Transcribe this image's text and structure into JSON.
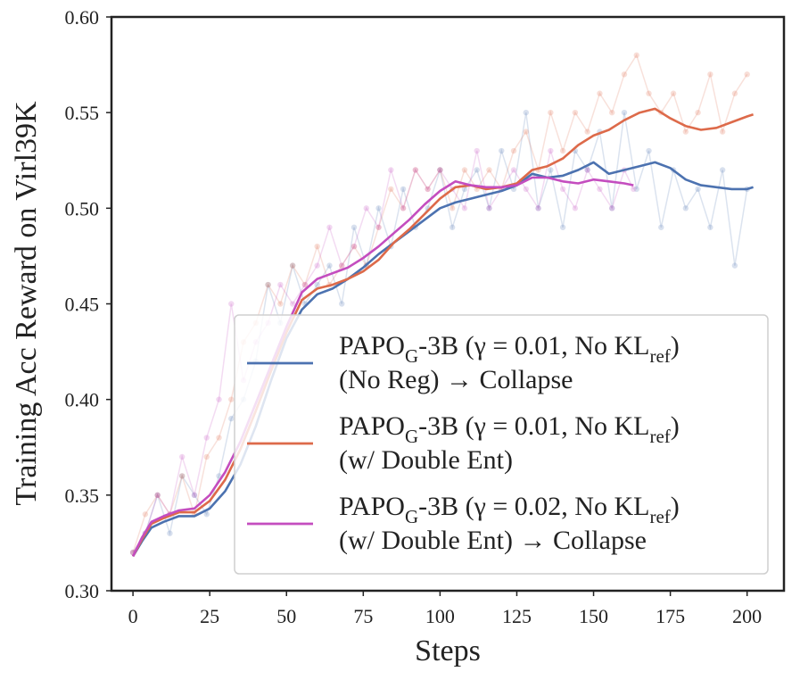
{
  "chart_data": {
    "type": "line",
    "title": "",
    "xlabel": "Steps",
    "ylabel": "Training Acc Reward on Virl39K",
    "xlim": [
      -7,
      212
    ],
    "ylim": [
      0.3,
      0.6
    ],
    "xticks": [
      0,
      25,
      50,
      75,
      100,
      125,
      150,
      175,
      200
    ],
    "yticks": [
      0.3,
      0.35,
      0.4,
      0.45,
      0.5,
      0.55,
      0.6
    ],
    "xtick_labels": [
      "0",
      "25",
      "50",
      "75",
      "100",
      "125",
      "150",
      "175",
      "200"
    ],
    "ytick_labels": [
      "0.30",
      "0.35",
      "0.40",
      "0.45",
      "0.50",
      "0.55",
      "0.60"
    ],
    "grid": false,
    "legend_position": "lower-right",
    "series": [
      {
        "name": "PAPO_G-3B (γ = 0.01, No KL_ref) (No Reg) → Collapse",
        "legend": {
          "prefix": "PAPO",
          "sub": "G",
          "middle": "-3B (γ = 0.01, No KL",
          "sub2": "ref",
          "suffix": ")",
          "line2": "(No Reg) → Collapse"
        },
        "color": "#4c72b0",
        "smoothed": [
          [
            0,
            0.318
          ],
          [
            3,
            0.326
          ],
          [
            6,
            0.333
          ],
          [
            10,
            0.336
          ],
          [
            15,
            0.339
          ],
          [
            20,
            0.339
          ],
          [
            25,
            0.343
          ],
          [
            30,
            0.352
          ],
          [
            35,
            0.366
          ],
          [
            40,
            0.386
          ],
          [
            45,
            0.41
          ],
          [
            50,
            0.432
          ],
          [
            55,
            0.447
          ],
          [
            60,
            0.455
          ],
          [
            65,
            0.458
          ],
          [
            70,
            0.463
          ],
          [
            75,
            0.469
          ],
          [
            80,
            0.476
          ],
          [
            85,
            0.482
          ],
          [
            90,
            0.488
          ],
          [
            95,
            0.494
          ],
          [
            100,
            0.5
          ],
          [
            105,
            0.503
          ],
          [
            110,
            0.505
          ],
          [
            115,
            0.507
          ],
          [
            120,
            0.509
          ],
          [
            125,
            0.512
          ],
          [
            130,
            0.518
          ],
          [
            135,
            0.516
          ],
          [
            140,
            0.517
          ],
          [
            145,
            0.52
          ],
          [
            150,
            0.524
          ],
          [
            155,
            0.518
          ],
          [
            160,
            0.52
          ],
          [
            165,
            0.522
          ],
          [
            170,
            0.524
          ],
          [
            175,
            0.521
          ],
          [
            180,
            0.515
          ],
          [
            185,
            0.512
          ],
          [
            190,
            0.511
          ],
          [
            195,
            0.51
          ],
          [
            200,
            0.51
          ],
          [
            202,
            0.511
          ]
        ],
        "raw": [
          [
            0,
            0.32
          ],
          [
            4,
            0.33
          ],
          [
            8,
            0.35
          ],
          [
            12,
            0.33
          ],
          [
            16,
            0.36
          ],
          [
            20,
            0.35
          ],
          [
            24,
            0.34
          ],
          [
            28,
            0.36
          ],
          [
            32,
            0.39
          ],
          [
            36,
            0.4
          ],
          [
            40,
            0.42
          ],
          [
            44,
            0.46
          ],
          [
            48,
            0.44
          ],
          [
            52,
            0.47
          ],
          [
            56,
            0.45
          ],
          [
            60,
            0.46
          ],
          [
            64,
            0.47
          ],
          [
            68,
            0.45
          ],
          [
            72,
            0.49
          ],
          [
            76,
            0.47
          ],
          [
            80,
            0.5
          ],
          [
            84,
            0.48
          ],
          [
            88,
            0.51
          ],
          [
            92,
            0.49
          ],
          [
            96,
            0.5
          ],
          [
            100,
            0.52
          ],
          [
            104,
            0.49
          ],
          [
            108,
            0.51
          ],
          [
            112,
            0.52
          ],
          [
            116,
            0.5
          ],
          [
            120,
            0.53
          ],
          [
            124,
            0.51
          ],
          [
            128,
            0.55
          ],
          [
            132,
            0.5
          ],
          [
            136,
            0.52
          ],
          [
            140,
            0.49
          ],
          [
            144,
            0.53
          ],
          [
            148,
            0.52
          ],
          [
            152,
            0.54
          ],
          [
            156,
            0.5
          ],
          [
            160,
            0.55
          ],
          [
            164,
            0.51
          ],
          [
            168,
            0.53
          ],
          [
            172,
            0.49
          ],
          [
            176,
            0.52
          ],
          [
            180,
            0.5
          ],
          [
            184,
            0.51
          ],
          [
            188,
            0.49
          ],
          [
            192,
            0.52
          ],
          [
            196,
            0.47
          ],
          [
            200,
            0.51
          ]
        ]
      },
      {
        "name": "PAPO_G-3B (γ = 0.01, No KL_ref) (w/ Double Ent)",
        "legend": {
          "prefix": "PAPO",
          "sub": "G",
          "middle": "-3B (γ = 0.01, No KL",
          "sub2": "ref",
          "suffix": ")",
          "line2": "(w/ Double Ent)"
        },
        "color": "#dd6a4a",
        "smoothed": [
          [
            0,
            0.318
          ],
          [
            3,
            0.327
          ],
          [
            6,
            0.335
          ],
          [
            10,
            0.338
          ],
          [
            15,
            0.341
          ],
          [
            20,
            0.341
          ],
          [
            25,
            0.347
          ],
          [
            30,
            0.358
          ],
          [
            35,
            0.374
          ],
          [
            40,
            0.394
          ],
          [
            45,
            0.415
          ],
          [
            50,
            0.435
          ],
          [
            55,
            0.452
          ],
          [
            60,
            0.458
          ],
          [
            65,
            0.46
          ],
          [
            70,
            0.463
          ],
          [
            75,
            0.467
          ],
          [
            80,
            0.473
          ],
          [
            85,
            0.482
          ],
          [
            90,
            0.489
          ],
          [
            95,
            0.497
          ],
          [
            100,
            0.505
          ],
          [
            105,
            0.511
          ],
          [
            110,
            0.512
          ],
          [
            115,
            0.51
          ],
          [
            120,
            0.511
          ],
          [
            125,
            0.513
          ],
          [
            130,
            0.52
          ],
          [
            135,
            0.522
          ],
          [
            140,
            0.526
          ],
          [
            145,
            0.533
          ],
          [
            150,
            0.538
          ],
          [
            155,
            0.541
          ],
          [
            160,
            0.546
          ],
          [
            165,
            0.55
          ],
          [
            170,
            0.552
          ],
          [
            175,
            0.547
          ],
          [
            180,
            0.543
          ],
          [
            185,
            0.541
          ],
          [
            190,
            0.542
          ],
          [
            195,
            0.545
          ],
          [
            200,
            0.548
          ],
          [
            202,
            0.549
          ]
        ],
        "raw": [
          [
            0,
            0.32
          ],
          [
            4,
            0.34
          ],
          [
            8,
            0.35
          ],
          [
            12,
            0.34
          ],
          [
            16,
            0.36
          ],
          [
            20,
            0.34
          ],
          [
            24,
            0.37
          ],
          [
            28,
            0.38
          ],
          [
            32,
            0.4
          ],
          [
            36,
            0.43
          ],
          [
            40,
            0.44
          ],
          [
            44,
            0.46
          ],
          [
            48,
            0.45
          ],
          [
            52,
            0.47
          ],
          [
            56,
            0.46
          ],
          [
            60,
            0.48
          ],
          [
            64,
            0.46
          ],
          [
            68,
            0.47
          ],
          [
            72,
            0.48
          ],
          [
            76,
            0.47
          ],
          [
            80,
            0.49
          ],
          [
            84,
            0.51
          ],
          [
            88,
            0.5
          ],
          [
            92,
            0.52
          ],
          [
            96,
            0.51
          ],
          [
            100,
            0.52
          ],
          [
            104,
            0.5
          ],
          [
            108,
            0.52
          ],
          [
            112,
            0.51
          ],
          [
            116,
            0.52
          ],
          [
            120,
            0.51
          ],
          [
            124,
            0.53
          ],
          [
            128,
            0.54
          ],
          [
            132,
            0.52
          ],
          [
            136,
            0.55
          ],
          [
            140,
            0.53
          ],
          [
            144,
            0.55
          ],
          [
            148,
            0.54
          ],
          [
            152,
            0.56
          ],
          [
            156,
            0.55
          ],
          [
            160,
            0.57
          ],
          [
            164,
            0.58
          ],
          [
            168,
            0.56
          ],
          [
            172,
            0.55
          ],
          [
            176,
            0.56
          ],
          [
            180,
            0.54
          ],
          [
            184,
            0.55
          ],
          [
            188,
            0.57
          ],
          [
            192,
            0.54
          ],
          [
            196,
            0.56
          ],
          [
            200,
            0.57
          ]
        ]
      },
      {
        "name": "PAPO_G-3B (γ = 0.02, No KL_ref) (w/ Double Ent) → Collapse",
        "legend": {
          "prefix": "PAPO",
          "sub": "G",
          "middle": "-3B (γ = 0.02, No KL",
          "sub2": "ref",
          "suffix": ")",
          "line2": "(w/ Double Ent) → Collapse"
        },
        "color": "#c44dbf",
        "smoothed": [
          [
            0,
            0.318
          ],
          [
            3,
            0.328
          ],
          [
            6,
            0.336
          ],
          [
            10,
            0.339
          ],
          [
            15,
            0.342
          ],
          [
            20,
            0.343
          ],
          [
            25,
            0.35
          ],
          [
            30,
            0.362
          ],
          [
            35,
            0.378
          ],
          [
            40,
            0.398
          ],
          [
            45,
            0.418
          ],
          [
            50,
            0.438
          ],
          [
            55,
            0.456
          ],
          [
            60,
            0.463
          ],
          [
            65,
            0.466
          ],
          [
            70,
            0.469
          ],
          [
            75,
            0.474
          ],
          [
            80,
            0.48
          ],
          [
            85,
            0.487
          ],
          [
            90,
            0.494
          ],
          [
            95,
            0.502
          ],
          [
            100,
            0.509
          ],
          [
            105,
            0.514
          ],
          [
            110,
            0.512
          ],
          [
            115,
            0.511
          ],
          [
            120,
            0.511
          ],
          [
            125,
            0.512
          ],
          [
            130,
            0.516
          ],
          [
            135,
            0.516
          ],
          [
            140,
            0.514
          ],
          [
            145,
            0.513
          ],
          [
            150,
            0.515
          ],
          [
            155,
            0.514
          ],
          [
            160,
            0.513
          ],
          [
            163,
            0.512
          ]
        ],
        "raw": [
          [
            0,
            0.32
          ],
          [
            4,
            0.33
          ],
          [
            8,
            0.35
          ],
          [
            12,
            0.34
          ],
          [
            16,
            0.37
          ],
          [
            20,
            0.35
          ],
          [
            24,
            0.38
          ],
          [
            28,
            0.4
          ],
          [
            32,
            0.45
          ],
          [
            36,
            0.41
          ],
          [
            40,
            0.43
          ],
          [
            44,
            0.44
          ],
          [
            48,
            0.46
          ],
          [
            52,
            0.45
          ],
          [
            56,
            0.46
          ],
          [
            60,
            0.47
          ],
          [
            64,
            0.49
          ],
          [
            68,
            0.47
          ],
          [
            72,
            0.48
          ],
          [
            76,
            0.5
          ],
          [
            80,
            0.49
          ],
          [
            84,
            0.52
          ],
          [
            88,
            0.5
          ],
          [
            92,
            0.52
          ],
          [
            96,
            0.51
          ],
          [
            100,
            0.52
          ],
          [
            104,
            0.51
          ],
          [
            108,
            0.5
          ],
          [
            112,
            0.53
          ],
          [
            116,
            0.5
          ],
          [
            120,
            0.51
          ],
          [
            124,
            0.52
          ],
          [
            128,
            0.51
          ],
          [
            132,
            0.5
          ],
          [
            136,
            0.53
          ],
          [
            140,
            0.51
          ],
          [
            144,
            0.5
          ],
          [
            148,
            0.52
          ],
          [
            152,
            0.51
          ],
          [
            156,
            0.5
          ],
          [
            160,
            0.52
          ],
          [
            163,
            0.51
          ]
        ]
      }
    ]
  }
}
